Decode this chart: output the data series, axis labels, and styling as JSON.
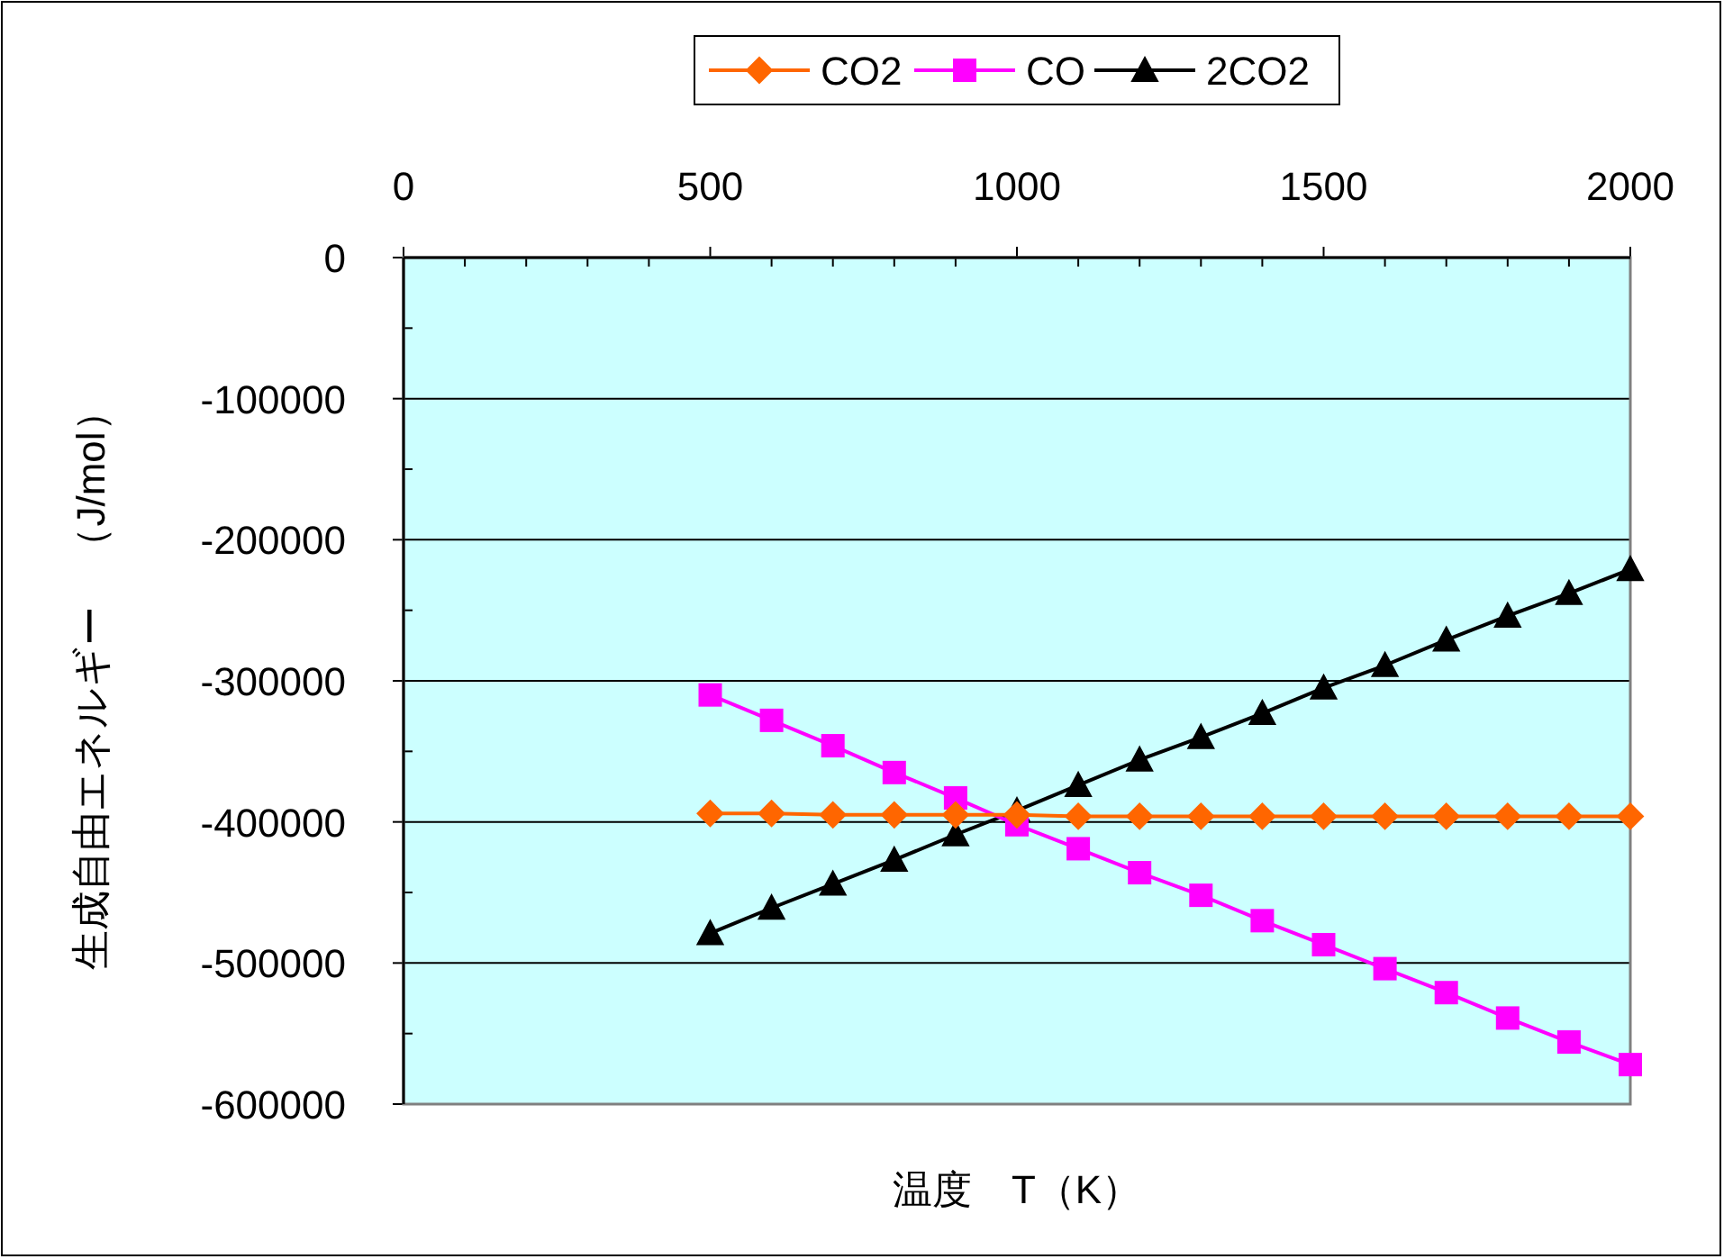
{
  "chart_data": {
    "type": "line",
    "xlabel": "温度　T（K）",
    "ylabel": "生成自由エネルギー　（J/mol）",
    "x": [
      500,
      600,
      700,
      800,
      900,
      1000,
      1100,
      1200,
      1300,
      1400,
      1500,
      1600,
      1700,
      1800,
      1900,
      2000
    ],
    "series": [
      {
        "name": "CO2",
        "color": "#ff6600",
        "marker": "diamond",
        "values": [
          -394000,
          -394000,
          -395000,
          -395000,
          -395000,
          -395000,
          -396000,
          -396000,
          -396000,
          -396000,
          -396000,
          -396000,
          -396000,
          -396000,
          -396000,
          -396000
        ]
      },
      {
        "name": "CO",
        "color": "#ff00ff",
        "marker": "square",
        "values": [
          -310000,
          -328000,
          -346000,
          -365000,
          -383000,
          -402000,
          -419000,
          -436000,
          -452000,
          -470000,
          -487000,
          -504000,
          -521000,
          -539000,
          -556000,
          -572000
        ]
      },
      {
        "name": "2CO2",
        "color": "#000000",
        "marker": "triangle",
        "values": [
          -479000,
          -461000,
          -444000,
          -427000,
          -409000,
          -392000,
          -374000,
          -356000,
          -340000,
          -323000,
          -305000,
          -289000,
          -271000,
          -254000,
          -238000,
          -221000
        ]
      }
    ],
    "xlim": [
      0,
      2000
    ],
    "ylim": [
      -600000,
      0
    ],
    "xticks": [
      0,
      {
        "value": 100,
        "label": null
      },
      {
        "value": 200,
        "label": null
      },
      {
        "value": 300,
        "label": null
      },
      {
        "value": 400,
        "label": null
      },
      500,
      {
        "value": 600,
        "label": null
      },
      {
        "value": 700,
        "label": null
      },
      {
        "value": 800,
        "label": null
      },
      {
        "value": 900,
        "label": null
      },
      1000,
      {
        "value": 1100,
        "label": null
      },
      {
        "value": 1200,
        "label": null
      },
      {
        "value": 1300,
        "label": null
      },
      {
        "value": 1400,
        "label": null
      },
      1500,
      {
        "value": 1600,
        "label": null
      },
      {
        "value": 1700,
        "label": null
      },
      {
        "value": 1800,
        "label": null
      },
      {
        "value": 1900,
        "label": null
      },
      2000
    ],
    "yticks": [
      0,
      {
        "value": -50000,
        "label": null
      },
      -100000,
      {
        "value": -150000,
        "label": null
      },
      -200000,
      {
        "value": -250000,
        "label": null
      },
      -300000,
      {
        "value": -350000,
        "label": null
      },
      -400000,
      {
        "value": -450000,
        "label": null
      },
      -500000,
      {
        "value": -550000,
        "label": null
      },
      -600000
    ],
    "grid": "y",
    "legend": "top"
  }
}
